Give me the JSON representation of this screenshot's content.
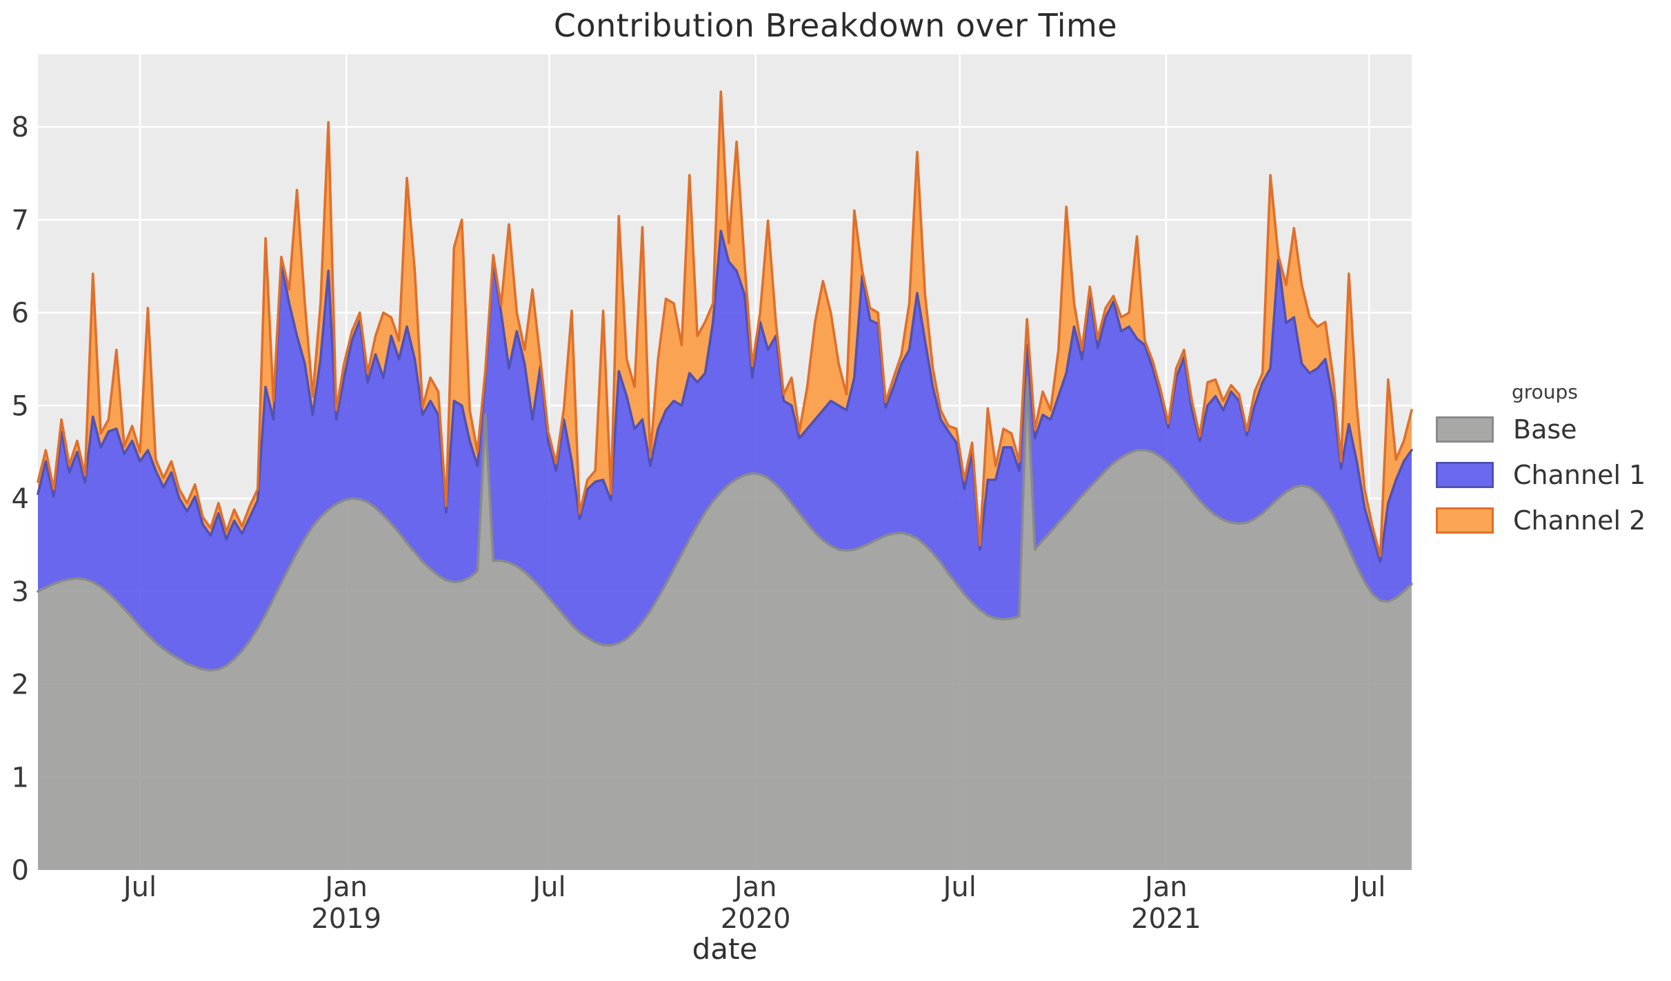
{
  "title": "Contribution Breakdown over Time",
  "x_axis": {
    "label": "date",
    "ticks": [
      {
        "line1": "Jul",
        "line2": "",
        "date": "2018-07-01"
      },
      {
        "line1": "Jan",
        "line2": "2019",
        "date": "2019-01-01"
      },
      {
        "line1": "Jul",
        "line2": "",
        "date": "2019-07-01"
      },
      {
        "line1": "Jan",
        "line2": "2020",
        "date": "2020-01-01"
      },
      {
        "line1": "Jul",
        "line2": "",
        "date": "2020-07-01"
      },
      {
        "line1": "Jan",
        "line2": "2021",
        "date": "2021-01-01"
      },
      {
        "line1": "Jul",
        "line2": "",
        "date": "2021-07-01"
      }
    ]
  },
  "y_axis": {
    "ticks": [
      0,
      1,
      2,
      3,
      4,
      5,
      6,
      7,
      8
    ]
  },
  "legend": {
    "title": "groups",
    "entries": [
      {
        "label": "Base",
        "fill": "#9f9f9d",
        "stroke": "#8a8a8a"
      },
      {
        "label": "Channel 1",
        "fill": "#5b59ee",
        "stroke": "#5052b4"
      },
      {
        "label": "Channel 2",
        "fill": "#fc9b41",
        "stroke": "#e06f2a"
      }
    ]
  },
  "colors": {
    "panel_bg": "#ebebeb",
    "grid": "#ffffff",
    "tick_text": "#373737",
    "title_text": "#2b2b2b"
  },
  "chart_data": {
    "type": "area",
    "stacked": true,
    "title": "Contribution Breakdown over Time",
    "xlabel": "date",
    "ylabel": "",
    "x_start_date": "2018-04-01",
    "x_end_date": "2021-08-08",
    "x_step_days": 7,
    "y_max": 8.78,
    "ylim": [
      0,
      8.78
    ],
    "grid": "major-white-on-gray",
    "legend_position": "right",
    "series": [
      {
        "name": "Base",
        "values": [
          3.0,
          3.04,
          3.08,
          3.11,
          3.13,
          3.14,
          3.13,
          3.1,
          3.05,
          2.98,
          2.9,
          2.81,
          2.72,
          2.62,
          2.53,
          2.45,
          2.38,
          2.32,
          2.27,
          2.22,
          2.19,
          2.16,
          2.15,
          2.16,
          2.2,
          2.27,
          2.36,
          2.47,
          2.6,
          2.75,
          2.92,
          3.09,
          3.26,
          3.42,
          3.57,
          3.7,
          3.8,
          3.88,
          3.94,
          3.98,
          4.0,
          3.99,
          3.96,
          3.9,
          3.82,
          3.73,
          3.63,
          3.52,
          3.42,
          3.32,
          3.24,
          3.17,
          3.12,
          3.1,
          3.11,
          3.15,
          3.22,
          4.9,
          3.33,
          3.33,
          3.31,
          3.27,
          3.21,
          3.13,
          3.04,
          2.94,
          2.84,
          2.74,
          2.64,
          2.56,
          2.5,
          2.45,
          2.42,
          2.42,
          2.44,
          2.49,
          2.57,
          2.67,
          2.79,
          2.93,
          3.08,
          3.24,
          3.4,
          3.56,
          3.71,
          3.85,
          3.97,
          4.07,
          4.15,
          4.21,
          4.25,
          4.27,
          4.26,
          4.22,
          4.15,
          4.06,
          3.95,
          3.84,
          3.73,
          3.63,
          3.55,
          3.49,
          3.45,
          3.44,
          3.45,
          3.48,
          3.52,
          3.56,
          3.6,
          3.62,
          3.63,
          3.61,
          3.57,
          3.5,
          3.41,
          3.31,
          3.19,
          3.08,
          2.97,
          2.88,
          2.8,
          2.74,
          2.71,
          2.7,
          2.71,
          2.73,
          5.3,
          3.45,
          3.55,
          3.64,
          3.74,
          3.83,
          3.93,
          4.03,
          4.12,
          4.21,
          4.3,
          4.38,
          4.44,
          4.49,
          4.52,
          4.52,
          4.5,
          4.45,
          4.38,
          4.29,
          4.19,
          4.08,
          3.98,
          3.89,
          3.82,
          3.77,
          3.74,
          3.73,
          3.74,
          3.78,
          3.84,
          3.92,
          4.0,
          4.07,
          4.12,
          4.14,
          4.12,
          4.06,
          3.96,
          3.82,
          3.65,
          3.46,
          3.27,
          3.1,
          2.97,
          2.9,
          2.89,
          2.93,
          3.0,
          3.08
        ]
      },
      {
        "name": "Channel 1",
        "values": [
          1.05,
          1.36,
          0.94,
          1.61,
          1.15,
          1.36,
          1.04,
          1.78,
          1.5,
          1.74,
          1.85,
          1.67,
          1.9,
          1.78,
          1.99,
          1.85,
          1.74,
          1.96,
          1.73,
          1.64,
          1.83,
          1.56,
          1.45,
          1.68,
          1.36,
          1.49,
          1.26,
          1.33,
          1.38,
          2.45,
          1.93,
          3.44,
          2.84,
          2.33,
          1.88,
          1.2,
          1.7,
          2.57,
          0.91,
          1.32,
          1.7,
          1.93,
          1.29,
          1.65,
          1.48,
          2.02,
          1.87,
          2.33,
          2.08,
          1.58,
          1.81,
          1.73,
          0.73,
          1.95,
          1.89,
          1.47,
          1.13,
          0.4,
          3.22,
          2.67,
          2.09,
          2.53,
          2.24,
          1.72,
          2.38,
          1.68,
          1.46,
          2.11,
          1.76,
          1.22,
          1.6,
          1.73,
          1.78,
          1.56,
          2.93,
          2.61,
          2.18,
          2.18,
          1.56,
          1.82,
          1.87,
          1.81,
          1.6,
          1.79,
          1.54,
          1.5,
          1.93,
          2.81,
          2.4,
          2.24,
          1.95,
          1.03,
          1.64,
          1.38,
          1.6,
          0.99,
          1.05,
          0.81,
          1.02,
          1.22,
          1.4,
          1.56,
          1.55,
          1.51,
          1.85,
          2.92,
          2.4,
          2.32,
          1.38,
          1.58,
          1.82,
          1.99,
          2.64,
          2.2,
          1.79,
          1.54,
          1.53,
          1.52,
          1.13,
          1.62,
          0.65,
          1.46,
          1.49,
          1.85,
          1.84,
          1.57,
          0.35,
          1.2,
          1.35,
          1.21,
          1.36,
          1.52,
          1.92,
          1.47,
          2.08,
          1.41,
          1.65,
          1.74,
          1.36,
          1.36,
          1.2,
          1.13,
          0.9,
          0.65,
          0.38,
          1.01,
          1.33,
          0.87,
          0.64,
          1.11,
          1.28,
          1.18,
          1.41,
          1.32,
          0.94,
          1.22,
          1.41,
          1.48,
          2.57,
          1.82,
          1.83,
          1.31,
          1.23,
          1.34,
          1.54,
          1.23,
          0.67,
          1.34,
          1.13,
          0.8,
          0.63,
          0.42,
          1.06,
          1.27,
          1.4,
          1.44
        ]
      },
      {
        "name": "Channel 2",
        "values": [
          0.13,
          0.12,
          0.08,
          0.13,
          0.08,
          0.12,
          0.08,
          1.54,
          0.15,
          0.13,
          0.85,
          0.08,
          0.16,
          0.1,
          1.53,
          0.12,
          0.1,
          0.12,
          0.1,
          0.09,
          0.13,
          0.08,
          0.08,
          0.11,
          0.08,
          0.12,
          0.08,
          0.12,
          0.12,
          1.6,
          0.2,
          0.07,
          0.15,
          1.57,
          0.65,
          0.2,
          0.6,
          1.6,
          0.1,
          0.15,
          0.1,
          0.08,
          0.1,
          0.2,
          0.7,
          0.2,
          0.2,
          1.6,
          0.95,
          0.08,
          0.25,
          0.25,
          0.07,
          1.65,
          2.0,
          0.33,
          0.15,
          0.08,
          0.07,
          0.08,
          1.55,
          0.2,
          0.15,
          1.4,
          0.08,
          0.1,
          0.08,
          0.12,
          1.62,
          0.06,
          0.1,
          0.12,
          1.82,
          0.07,
          1.67,
          0.4,
          0.45,
          2.07,
          0.1,
          0.75,
          1.2,
          1.05,
          0.65,
          2.13,
          0.5,
          0.55,
          0.2,
          1.5,
          0.2,
          1.39,
          0.35,
          0.13,
          0.1,
          1.39,
          0.15,
          0.07,
          0.3,
          0.07,
          0.45,
          1.05,
          1.39,
          0.95,
          0.45,
          0.17,
          1.8,
          0.05,
          0.13,
          0.12,
          0.06,
          0.1,
          0.1,
          0.5,
          1.52,
          0.5,
          0.2,
          0.1,
          0.06,
          0.15,
          0.1,
          0.1,
          0.05,
          0.77,
          0.15,
          0.2,
          0.15,
          0.1,
          0.28,
          0.09,
          0.25,
          0.1,
          0.5,
          1.79,
          0.25,
          0.1,
          0.08,
          0.1,
          0.1,
          0.06,
          0.15,
          0.15,
          1.1,
          0.05,
          0.08,
          0.08,
          0.05,
          0.1,
          0.08,
          0.1,
          0.05,
          0.25,
          0.18,
          0.1,
          0.07,
          0.07,
          0.05,
          0.15,
          0.1,
          2.08,
          0.05,
          0.41,
          0.96,
          0.85,
          0.6,
          0.45,
          0.4,
          0.25,
          0.08,
          1.62,
          0.6,
          0.2,
          0.1,
          0.06,
          1.33,
          0.22,
          0.22,
          0.43
        ]
      }
    ]
  }
}
